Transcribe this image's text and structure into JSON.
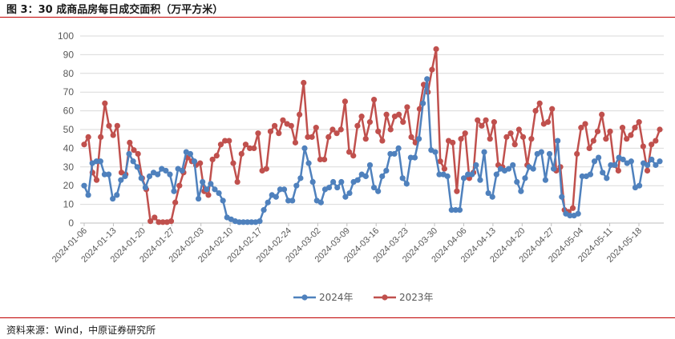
{
  "header": {
    "title": "图 3：30 成商品房每日成交面积（万平方米）"
  },
  "footer": {
    "source": "资料来源：Wind，中原证券研究所"
  },
  "colors": {
    "s2024": "#4f81bd",
    "s2023": "#c0504d",
    "grid": "#d9d9d9",
    "axis": "#bfbfbf",
    "rule": "#c00000"
  },
  "chart_data": {
    "type": "line",
    "title": "30 成商品房每日成交面积（万平方米）",
    "ylim": [
      0,
      100
    ],
    "yticks": [
      0,
      10,
      20,
      30,
      40,
      50,
      60,
      70,
      80,
      90,
      100
    ],
    "xticklabels": [
      "2024-01-06",
      "2024-01-13",
      "2024-01-20",
      "2024-01-27",
      "2024-02-03",
      "2024-02-10",
      "2024-02-17",
      "2024-02-24",
      "2024-03-02",
      "2024-03-09",
      "2024-03-16",
      "2024-03-23",
      "2024-03-30",
      "2024-04-06",
      "2024-04-13",
      "2024-04-20",
      "2024-04-27",
      "2024-05-04",
      "2024-05-11",
      "2024-05-18"
    ],
    "x_start": "2024-01-06",
    "x_end": "2024-05-23",
    "grid": true,
    "legend": "bottom",
    "series": [
      {
        "name": "2024年",
        "color": "#4f81bd",
        "values": [
          20,
          15,
          32,
          33,
          33,
          26,
          26,
          13,
          15,
          23,
          25,
          37,
          33,
          30,
          24,
          19,
          25,
          27,
          26,
          29,
          28,
          26,
          17,
          29,
          28,
          38,
          37,
          33,
          13,
          22,
          18,
          21,
          18,
          16,
          12,
          3,
          2,
          1,
          0.5,
          0.5,
          0.5,
          0.5,
          0.5,
          1,
          7,
          11,
          15,
          14,
          18,
          18,
          12,
          12,
          20,
          24,
          40,
          32,
          22,
          12,
          11,
          18,
          19,
          22,
          19,
          22,
          14,
          16,
          22,
          23,
          26,
          25,
          31,
          19,
          17,
          25,
          28,
          37,
          37,
          40,
          24,
          21,
          35,
          35,
          45,
          64,
          77,
          39,
          38,
          26,
          26,
          25,
          7,
          7,
          7,
          24,
          26,
          26,
          31,
          23,
          38,
          16,
          14,
          26,
          29,
          28,
          29,
          31,
          22,
          17,
          24,
          30,
          29,
          37,
          38,
          23,
          37,
          29,
          44,
          14,
          5,
          4,
          4,
          5,
          25,
          25,
          26,
          33,
          35,
          27,
          24,
          31,
          31,
          35,
          34,
          32,
          33,
          19,
          20,
          32,
          31,
          34,
          31,
          33
        ]
      },
      {
        "name": "2023年",
        "color": "#c0504d",
        "values": [
          42,
          46,
          27,
          23,
          46,
          64,
          52,
          47,
          52,
          27,
          26,
          43,
          39,
          37,
          24,
          18,
          1,
          3,
          0.5,
          0.5,
          0.5,
          1,
          11,
          20,
          27,
          35,
          33,
          31,
          32,
          17,
          15,
          34,
          36,
          42,
          44,
          44,
          32,
          22,
          37,
          42,
          40,
          40,
          48,
          28,
          29,
          49,
          52,
          48,
          55,
          53,
          52,
          43,
          58,
          75,
          46,
          46,
          51,
          34,
          34,
          46,
          50,
          48,
          50,
          65,
          38,
          36,
          52,
          57,
          45,
          54,
          66,
          49,
          44,
          58,
          50,
          57,
          58,
          54,
          62,
          46,
          43,
          61,
          74,
          70,
          82,
          93,
          33,
          29,
          44,
          43,
          17,
          45,
          48,
          24,
          27,
          55,
          52,
          55,
          45,
          54,
          31,
          30,
          46,
          48,
          42,
          50,
          46,
          31,
          45,
          60,
          64,
          53,
          54,
          61,
          28,
          30,
          7,
          6,
          8,
          37,
          51,
          53,
          40,
          44,
          49,
          58,
          45,
          49,
          31,
          28,
          51,
          45,
          47,
          51,
          54,
          41,
          28,
          42,
          44,
          50
        ]
      }
    ]
  }
}
